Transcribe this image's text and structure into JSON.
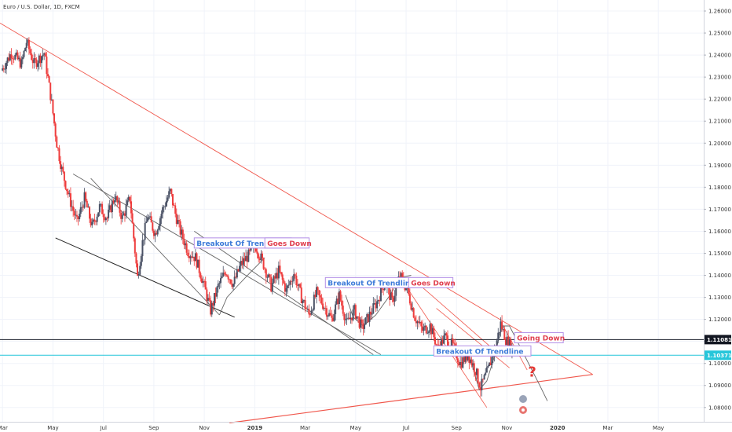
{
  "chart_data": {
    "type": "candlestick",
    "title": "Euro / U.S. Dollar, 1D, FXCM",
    "y_axis": {
      "ticks": [
        "1.26000",
        "1.25000",
        "1.24000",
        "1.23000",
        "1.22000",
        "1.21000",
        "1.20000",
        "1.19000",
        "1.18000",
        "1.17000",
        "1.16000",
        "1.15000",
        "1.14000",
        "1.13000",
        "1.12000",
        "1.11000",
        "1.10000",
        "1.09000",
        "1.08000"
      ],
      "ylim": [
        1.0735,
        1.265
      ]
    },
    "x_axis": {
      "ticks": [
        {
          "label": "Mar",
          "t": 0
        },
        {
          "label": "May",
          "t": 2
        },
        {
          "label": "Jul",
          "t": 4
        },
        {
          "label": "Sep",
          "t": 6
        },
        {
          "label": "Nov",
          "t": 8
        },
        {
          "label": "2019",
          "t": 10,
          "year": true
        },
        {
          "label": "Mar",
          "t": 12
        },
        {
          "label": "May",
          "t": 14
        },
        {
          "label": "Jul",
          "t": 16
        },
        {
          "label": "Sep",
          "t": 18
        },
        {
          "label": "Nov",
          "t": 20
        },
        {
          "label": "2020",
          "t": 22,
          "year": true
        },
        {
          "label": "Mar",
          "t": 24
        },
        {
          "label": "May",
          "t": 26
        }
      ],
      "xlim": [
        -0.1,
        27.8
      ]
    },
    "price_path": [
      [
        0,
        1.233
      ],
      [
        0.4,
        1.241
      ],
      [
        0.8,
        1.236
      ],
      [
        1.0,
        1.246
      ],
      [
        1.3,
        1.236
      ],
      [
        1.7,
        1.241
      ],
      [
        2.0,
        1.218
      ],
      [
        2.2,
        1.2
      ],
      [
        2.4,
        1.188
      ],
      [
        2.7,
        1.175
      ],
      [
        3.0,
        1.164
      ],
      [
        3.3,
        1.175
      ],
      [
        3.6,
        1.162
      ],
      [
        3.9,
        1.171
      ],
      [
        4.2,
        1.166
      ],
      [
        4.5,
        1.176
      ],
      [
        4.8,
        1.166
      ],
      [
        5.1,
        1.175
      ],
      [
        5.4,
        1.139
      ],
      [
        5.6,
        1.155
      ],
      [
        5.8,
        1.167
      ],
      [
        6.1,
        1.159
      ],
      [
        6.4,
        1.17
      ],
      [
        6.7,
        1.178
      ],
      [
        6.9,
        1.168
      ],
      [
        7.1,
        1.16
      ],
      [
        7.4,
        1.151
      ],
      [
        7.7,
        1.148
      ],
      [
        8.0,
        1.137
      ],
      [
        8.3,
        1.124
      ],
      [
        8.6,
        1.135
      ],
      [
        8.9,
        1.142
      ],
      [
        9.2,
        1.136
      ],
      [
        9.5,
        1.145
      ],
      [
        9.8,
        1.149
      ],
      [
        10.1,
        1.153
      ],
      [
        10.4,
        1.145
      ],
      [
        10.7,
        1.135
      ],
      [
        11.0,
        1.142
      ],
      [
        11.3,
        1.133
      ],
      [
        11.6,
        1.141
      ],
      [
        11.9,
        1.13
      ],
      [
        12.2,
        1.122
      ],
      [
        12.5,
        1.132
      ],
      [
        12.8,
        1.126
      ],
      [
        13.1,
        1.12
      ],
      [
        13.4,
        1.131
      ],
      [
        13.7,
        1.118
      ],
      [
        14.0,
        1.124
      ],
      [
        14.3,
        1.116
      ],
      [
        14.6,
        1.122
      ],
      [
        14.9,
        1.128
      ],
      [
        15.2,
        1.137
      ],
      [
        15.5,
        1.128
      ],
      [
        15.8,
        1.14
      ],
      [
        16.1,
        1.133
      ],
      [
        16.4,
        1.121
      ],
      [
        16.7,
        1.115
      ],
      [
        17.0,
        1.117
      ],
      [
        17.3,
        1.107
      ],
      [
        17.6,
        1.112
      ],
      [
        17.9,
        1.108
      ],
      [
        18.2,
        1.1
      ],
      [
        18.5,
        1.104
      ],
      [
        18.8,
        1.097
      ],
      [
        19.0,
        1.089
      ],
      [
        19.3,
        1.097
      ],
      [
        19.6,
        1.108
      ],
      [
        19.8,
        1.118
      ],
      [
        20.0,
        1.111
      ],
      [
        20.3,
        1.106
      ]
    ],
    "lines": [
      {
        "name": "major-resistance",
        "color": "#f0574c",
        "width": 0.9,
        "points": [
          [
            -0.1,
            1.2545
          ],
          [
            23.4,
            1.095
          ]
        ]
      },
      {
        "name": "major-support",
        "color": "#f0574c",
        "width": 1.2,
        "points": [
          [
            9.0,
            1.073
          ],
          [
            23.4,
            1.095
          ]
        ]
      },
      {
        "name": "channel-1-upper",
        "color": "#666666",
        "width": 0.9,
        "points": [
          [
            2.8,
            1.186
          ],
          [
            15.0,
            1.104
          ]
        ]
      },
      {
        "name": "channel-1-lower",
        "color": "#222222",
        "width": 1.0,
        "points": [
          [
            2.1,
            1.157
          ],
          [
            9.2,
            1.121
          ]
        ]
      },
      {
        "name": "channel-2-upper",
        "color": "#666666",
        "width": 0.9,
        "points": [
          [
            3.5,
            1.184
          ],
          [
            8.6,
            1.122
          ]
        ]
      },
      {
        "name": "channel-2-lower",
        "color": "#666666",
        "width": 0.9,
        "points": [
          [
            7.6,
            1.16
          ],
          [
            14.7,
            1.104
          ]
        ]
      },
      {
        "name": "channel-3-upper",
        "color": "#f0574c",
        "width": 0.8,
        "points": [
          [
            16.2,
            1.139
          ],
          [
            19.8,
            1.103
          ]
        ]
      },
      {
        "name": "channel-3-lower",
        "color": "#f0574c",
        "width": 0.8,
        "points": [
          [
            16.0,
            1.135
          ],
          [
            19.2,
            1.08
          ]
        ]
      },
      {
        "name": "channel-3-mid",
        "color": "#f0574c",
        "width": 0.8,
        "points": [
          [
            17.2,
            1.125
          ],
          [
            20.1,
            1.098
          ]
        ]
      },
      {
        "name": "breakdown-line",
        "color": "#f0574c",
        "width": 0.8,
        "points": [
          [
            19.8,
            1.118
          ],
          [
            20.8,
            1.097
          ]
        ]
      },
      {
        "name": "curve-1",
        "color": "#666666",
        "width": 0.9,
        "points": [
          [
            8.6,
            1.122
          ],
          [
            8.9,
            1.13
          ],
          [
            9.3,
            1.135
          ],
          [
            9.8,
            1.141
          ],
          [
            10.4,
            1.148
          ]
        ]
      },
      {
        "name": "curve-2",
        "color": "#666666",
        "width": 0.9,
        "points": [
          [
            13.6,
            1.131
          ],
          [
            13.9,
            1.121
          ],
          [
            14.3,
            1.117
          ],
          [
            14.8,
            1.122
          ],
          [
            15.3,
            1.13
          ],
          [
            15.8,
            1.139
          ],
          [
            16.2,
            1.14
          ]
        ]
      },
      {
        "name": "curve-3",
        "color": "#666666",
        "width": 0.9,
        "points": [
          [
            18.6,
            1.1
          ],
          [
            18.9,
            1.088
          ],
          [
            19.2,
            1.092
          ],
          [
            19.5,
            1.103
          ],
          [
            19.8,
            1.117
          ],
          [
            20.1,
            1.117
          ],
          [
            20.5,
            1.108
          ],
          [
            20.9,
            1.099
          ],
          [
            21.3,
            1.09
          ],
          [
            21.6,
            1.083
          ]
        ]
      }
    ],
    "horizontal_lines": [
      {
        "name": "level-black",
        "value": 1.11081,
        "label": "1.11081",
        "color": "#131722"
      },
      {
        "name": "level-current",
        "value": 1.10371,
        "label": "1.10371",
        "color": "#26c6da"
      }
    ],
    "annotations": [
      {
        "name": "label-breakout-1",
        "text": "Breakout Of Trendline",
        "t": 7.6,
        "y": 1.1545,
        "color": "#3d7bd9",
        "border": "#b28ee6"
      },
      {
        "name": "label-goes-down-1",
        "text": "Goes Down",
        "t": 10.4,
        "y": 1.1545,
        "color": "#e0404f",
        "border": "#b28ee6"
      },
      {
        "name": "label-breakout-2",
        "text": "Breakout Of Trendline",
        "t": 12.8,
        "y": 1.1365,
        "color": "#3d7bd9",
        "border": "#b28ee6"
      },
      {
        "name": "label-goes-down-2",
        "text": "Goes Down",
        "t": 16.1,
        "y": 1.1365,
        "color": "#e0404f",
        "border": "#b28ee6"
      },
      {
        "name": "label-breakout-3",
        "text": "Breakout Of Trendline",
        "t": 17.1,
        "y": 1.1055,
        "color": "#3d7bd9",
        "border": "#b28ee6"
      },
      {
        "name": "label-going-down",
        "text": "Going Down",
        "t": 20.3,
        "y": 1.1115,
        "color": "#e0404f",
        "border": "#b28ee6"
      }
    ],
    "question_mark": {
      "text": "?",
      "t": 21.0,
      "y": 1.094,
      "color": "#e53935"
    }
  }
}
